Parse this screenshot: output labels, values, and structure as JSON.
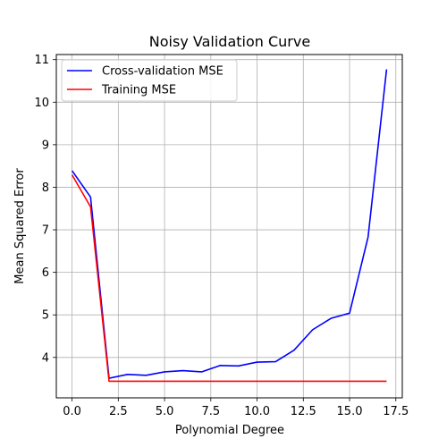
{
  "chart_data": {
    "type": "line",
    "title": "Noisy Validation Curve",
    "xlabel": "Polynomial Degree",
    "ylabel": "Mean Squared Error",
    "xlim": [
      -0.85,
      17.85
    ],
    "ylim": [
      3.05,
      11.12
    ],
    "xticks": [
      0.0,
      2.5,
      5.0,
      7.5,
      10.0,
      12.5,
      15.0,
      17.5
    ],
    "xtick_labels": [
      "0.0",
      "2.5",
      "5.0",
      "7.5",
      "10.0",
      "12.5",
      "15.0",
      "17.5"
    ],
    "yticks": [
      4,
      5,
      6,
      7,
      8,
      9,
      10,
      11
    ],
    "ytick_labels": [
      "4",
      "5",
      "6",
      "7",
      "8",
      "9",
      "10",
      "11"
    ],
    "grid": true,
    "legend_position": "upper-left",
    "x": [
      0,
      1,
      2,
      3,
      4,
      5,
      6,
      7,
      8,
      9,
      10,
      11,
      12,
      13,
      14,
      15,
      16,
      17
    ],
    "series": [
      {
        "name": "Cross-validation MSE",
        "color": "#0000ff",
        "values": [
          8.39,
          7.77,
          3.51,
          3.6,
          3.58,
          3.66,
          3.69,
          3.66,
          3.81,
          3.8,
          3.89,
          3.9,
          4.17,
          4.65,
          4.92,
          5.04,
          6.83,
          10.77
        ]
      },
      {
        "name": "Training MSE",
        "color": "#ff0000",
        "values": [
          8.29,
          7.54,
          3.44,
          3.44,
          3.44,
          3.44,
          3.44,
          3.44,
          3.44,
          3.44,
          3.44,
          3.44,
          3.44,
          3.44,
          3.44,
          3.44,
          3.44,
          3.44
        ]
      }
    ]
  }
}
